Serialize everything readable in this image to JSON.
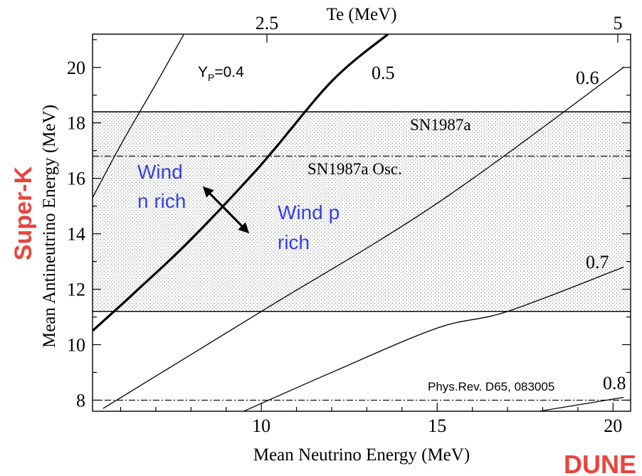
{
  "chart_data": {
    "type": "line",
    "title": "",
    "xlabel": "Mean Neutrino Energy (MeV)",
    "ylabel": "Mean Antineutrino Energy (MeV)",
    "top_axis_label": "Te (MeV)",
    "top_ticks": [
      {
        "x": 5.0,
        "label": "2.5"
      },
      {
        "x": 10.0,
        "label": "5"
      }
    ],
    "xlim": [
      5.2,
      20.5
    ],
    "ylim": [
      7.6,
      21.2
    ],
    "xticks": [
      10,
      15,
      20
    ],
    "yticks": [
      8,
      10,
      12,
      14,
      16,
      18,
      20
    ],
    "xtick_labels": [
      "10",
      "15",
      "20"
    ],
    "ytick_labels": [
      "8",
      "10",
      "12",
      "14",
      "16",
      "18",
      "20"
    ],
    "series": [
      {
        "name": "Yp=0.4",
        "label_text": "Y",
        "label_sub": "P",
        "label_suffix": "=0.4",
        "points": [
          [
            5.2,
            15.3
          ],
          [
            6.0,
            17.2
          ],
          [
            7.0,
            19.4
          ],
          [
            7.8,
            21.2
          ]
        ]
      },
      {
        "name": "0.5",
        "label_text": "0.5",
        "points": [
          [
            5.2,
            10.5
          ],
          [
            6.5,
            12.0
          ],
          [
            8.0,
            13.8
          ],
          [
            10.0,
            16.5
          ],
          [
            12.0,
            19.5
          ],
          [
            13.6,
            21.2
          ]
        ],
        "bold": true
      },
      {
        "name": "0.6",
        "label_text": "0.6",
        "points": [
          [
            5.5,
            7.7
          ],
          [
            10.0,
            11.2
          ],
          [
            15.0,
            15.1
          ],
          [
            20.3,
            20.0
          ]
        ]
      },
      {
        "name": "0.7",
        "label_text": "0.7",
        "points": [
          [
            9.5,
            7.6
          ],
          [
            12.0,
            9.0
          ],
          [
            15.0,
            10.6
          ],
          [
            17.0,
            11.2
          ],
          [
            20.3,
            12.8
          ]
        ]
      },
      {
        "name": "0.8",
        "label_text": "0.8",
        "points": [
          [
            17.9,
            7.6
          ],
          [
            20.3,
            8.1
          ]
        ]
      }
    ],
    "bands": [
      {
        "name": "SN1987a",
        "label_text": "SN1987a",
        "y_low": 11.2,
        "y_high": 18.4
      }
    ],
    "reference_lines": [
      {
        "name": "SN1987a Osc.",
        "label_text": "SN1987a Osc.",
        "y": 16.8
      },
      {
        "name": "lower-dashdot",
        "y": 8.0
      }
    ],
    "annotations": [
      {
        "text_lines": [
          "Wind",
          "n rich"
        ]
      },
      {
        "text_lines": [
          "Wind p",
          "rich"
        ]
      }
    ],
    "citation": "Phys.Rev. D65, 083005",
    "side_labels": {
      "left": "Super-K",
      "bottom_right": "DUNE"
    },
    "colors": {
      "annotation": "#3441e0",
      "side_label": "#e8453c"
    },
    "grid": false,
    "legend": "none"
  }
}
